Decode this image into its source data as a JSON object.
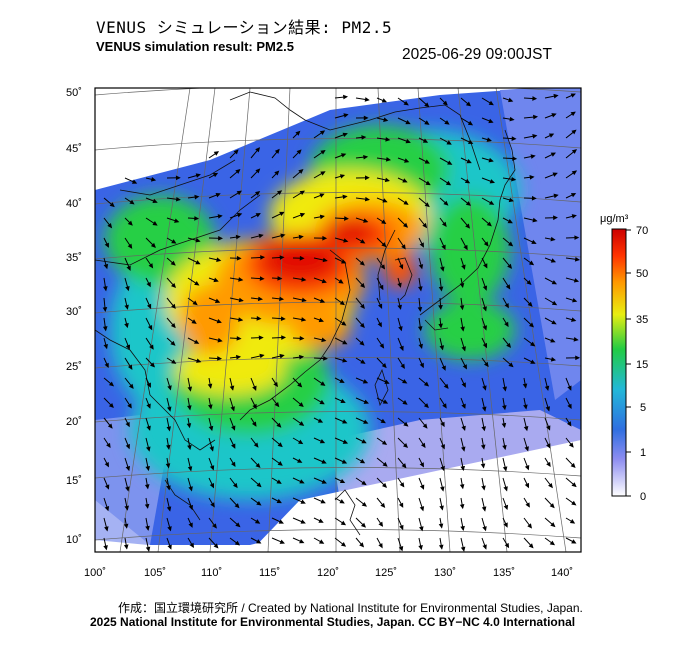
{
  "header": {
    "title_jp": "VENUS シミュレーション結果: PM2.5",
    "title_en": "VENUS simulation result: PM2.5",
    "timestamp": "2025-06-29 09:00JST"
  },
  "map": {
    "lat_labels": [
      "50˚",
      "45˚",
      "40˚",
      "35˚",
      "30˚",
      "25˚",
      "20˚",
      "15˚",
      "10˚"
    ],
    "lon_labels": [
      "100˚",
      "105˚",
      "110˚",
      "115˚",
      "120˚",
      "125˚",
      "130˚",
      "135˚",
      "140˚"
    ],
    "lat_range": [
      9,
      51
    ],
    "lon_range": [
      100,
      142
    ]
  },
  "colorbar": {
    "unit": "μg/m³",
    "labels": [
      "70",
      "50",
      "35",
      "15",
      "5",
      "1",
      "0"
    ],
    "colors": [
      "#cc0000",
      "#ff4400",
      "#ff9900",
      "#ffee00",
      "#22cc22",
      "#22bbcc",
      "#2266dd",
      "#8888ee",
      "#ffffff"
    ]
  },
  "footer": {
    "credit_line": "作成：国立環境研究所 / Created by National Institute for Environmental Studies, Japan.",
    "license_line": "2025 National Institute for Environmental Studies, Japan. CC BY−NC 4.0 International"
  }
}
